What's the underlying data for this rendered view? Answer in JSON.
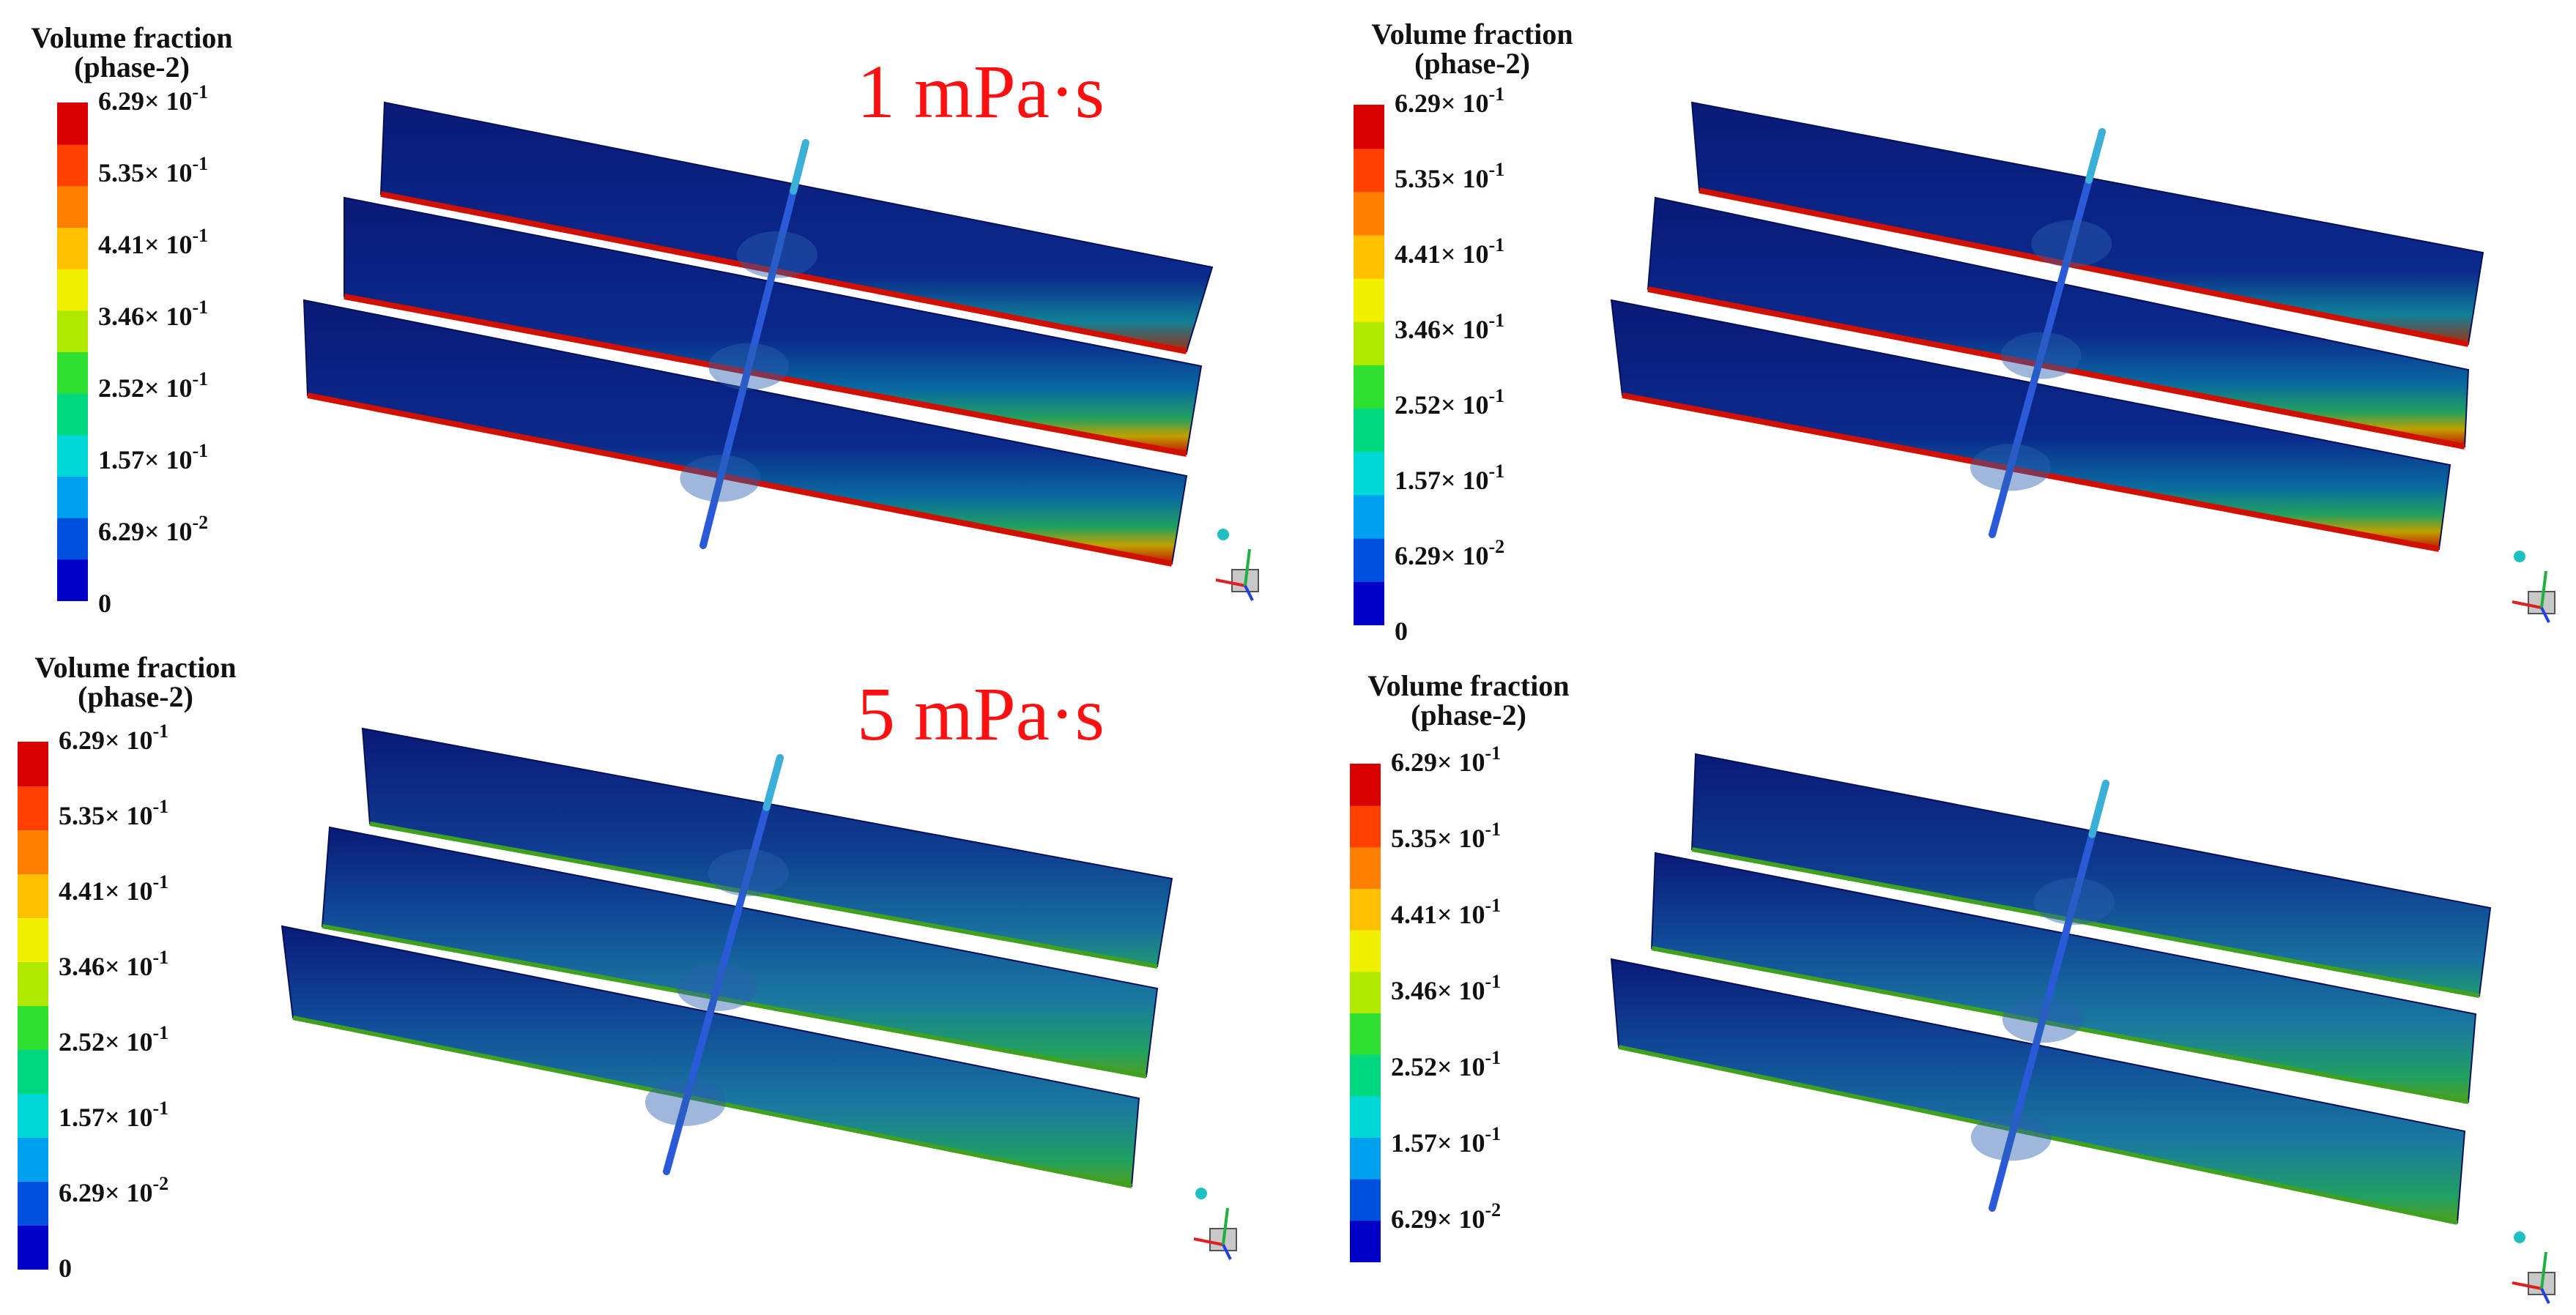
{
  "legend": {
    "title_line1": "Volume fraction",
    "title_line2": "(phase-2)",
    "colors": [
      "#0000c8",
      "#0050e0",
      "#00a0f0",
      "#00d8d8",
      "#00d880",
      "#30e030",
      "#b0e800",
      "#f0f000",
      "#ffc000",
      "#ff8000",
      "#ff4000",
      "#d80000"
    ],
    "tick_labels": [
      {
        "mantissa": "6.29",
        "times": "×",
        "base": "10",
        "exp": "-1"
      },
      {
        "mantissa": "5.35",
        "times": "×",
        "base": "10",
        "exp": "-1"
      },
      {
        "mantissa": "4.41",
        "times": "×",
        "base": "10",
        "exp": "-1"
      },
      {
        "mantissa": "3.46",
        "times": "×",
        "base": "10",
        "exp": "-1"
      },
      {
        "mantissa": "2.52",
        "times": "×",
        "base": "10",
        "exp": "-1"
      },
      {
        "mantissa": "1.57",
        "times": "×",
        "base": "10",
        "exp": "-1"
      },
      {
        "mantissa": "6.29",
        "times": "×",
        "base": "10",
        "exp": "-2"
      },
      {
        "mantissa": "0",
        "times": "",
        "base": "",
        "exp": ""
      }
    ]
  },
  "panels": [
    {
      "condition_label": "1 mPa·s",
      "show_zero_tick": true,
      "sediment": "high"
    },
    {
      "condition_label": "",
      "show_zero_tick": true,
      "sediment": "high"
    },
    {
      "condition_label": "5 mPa·s",
      "show_zero_tick": true,
      "sediment": "mid"
    },
    {
      "condition_label": "",
      "show_zero_tick": false,
      "sediment": "mid"
    }
  ],
  "colors": {
    "slab_background": "#0a1a78",
    "condition_label": "#ff1010",
    "pipe": "#2a5ad8",
    "pipe_upper": "#3ab0d8",
    "axis_x": "#e02020",
    "axis_y": "#20b040",
    "axis_z": "#2040e0"
  }
}
